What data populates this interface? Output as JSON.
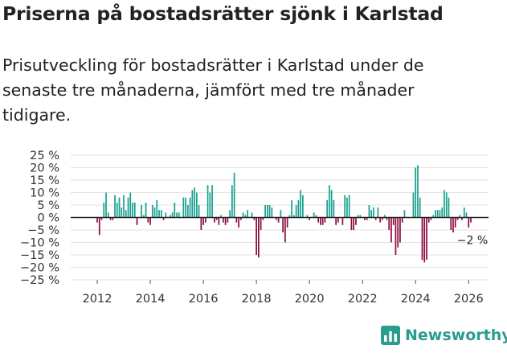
{
  "title": "Priserna på bostadsrätter sjönk i Karlstad",
  "subtitle": "Prisutveckling för bostadsrätter i Karlstad under de senaste tre månaderna, jämfört med tre månader tidigare.",
  "brand": {
    "name": "Newsworthy",
    "color": "#2a9d8f"
  },
  "colors": {
    "positive": "#16a08f",
    "negative": "#8c0a3f",
    "grid": "#e2e2e2",
    "zero_line": "#222222"
  },
  "chart_data": {
    "type": "bar",
    "title": "Priserna på bostadsrätter sjönk i Karlstad",
    "xlabel": "",
    "ylabel": "",
    "ylim": [
      -25,
      25
    ],
    "yticks": [
      -25,
      -20,
      -15,
      -10,
      -5,
      0,
      5,
      10,
      15,
      20,
      25
    ],
    "ytick_labels": [
      "−25 %",
      "−20 %",
      "−15 %",
      "−10 %",
      "−5 %",
      "0 %",
      "5 %",
      "10 %",
      "15 %",
      "20 %",
      "25 %"
    ],
    "xlim": [
      2011.0,
      2026.75
    ],
    "xticks": [
      2012,
      2014,
      2016,
      2018,
      2020,
      2022,
      2024,
      2026
    ],
    "xtick_labels": [
      "2012",
      "2014",
      "2016",
      "2018",
      "2020",
      "2022",
      "2024",
      "2026"
    ],
    "x_start": "2012-01",
    "x_step": "month",
    "values": [
      -2,
      -7,
      -1,
      6,
      10,
      2,
      -1,
      -1,
      9,
      6,
      8,
      4,
      9,
      3,
      8,
      10,
      6,
      6,
      -3,
      0,
      5,
      1,
      6,
      -2,
      -3,
      5,
      4,
      7,
      3,
      3,
      -1,
      2,
      0,
      1,
      2,
      6,
      2,
      2,
      0,
      8,
      8,
      5,
      8,
      11,
      12,
      10,
      5,
      -5,
      -3,
      -2,
      13,
      10,
      13,
      -2,
      -1,
      -3,
      1,
      -2,
      -3,
      -2,
      3,
      13,
      18,
      -2,
      -4,
      -1,
      2,
      1,
      3,
      0,
      2,
      -1,
      -15,
      -16,
      -5,
      -1,
      5,
      5,
      5,
      4,
      0,
      -1,
      -2,
      3,
      -6,
      -10,
      -4,
      1,
      7,
      1,
      5,
      7,
      11,
      9,
      0,
      1,
      -1,
      0,
      2,
      1,
      -2,
      -3,
      -3,
      -2,
      7,
      13,
      11,
      7,
      -3,
      -2,
      0,
      -3,
      9,
      8,
      9,
      -5,
      -5,
      -3,
      1,
      1,
      0,
      -1,
      -1,
      5,
      3,
      4,
      -1,
      4,
      -2,
      -1,
      1,
      -1,
      -5,
      -10,
      -3,
      -15,
      -12,
      -10,
      -2,
      3,
      0,
      0,
      0,
      10,
      20,
      21,
      8,
      -17,
      -18,
      -17,
      -2,
      -1,
      1,
      3,
      3,
      3,
      4,
      11,
      10,
      8,
      -5,
      -6,
      -4,
      -1,
      1,
      -1,
      4,
      2,
      -4,
      -2
    ],
    "annotation": {
      "text": "−2 %",
      "index": 169,
      "value": -2
    }
  }
}
